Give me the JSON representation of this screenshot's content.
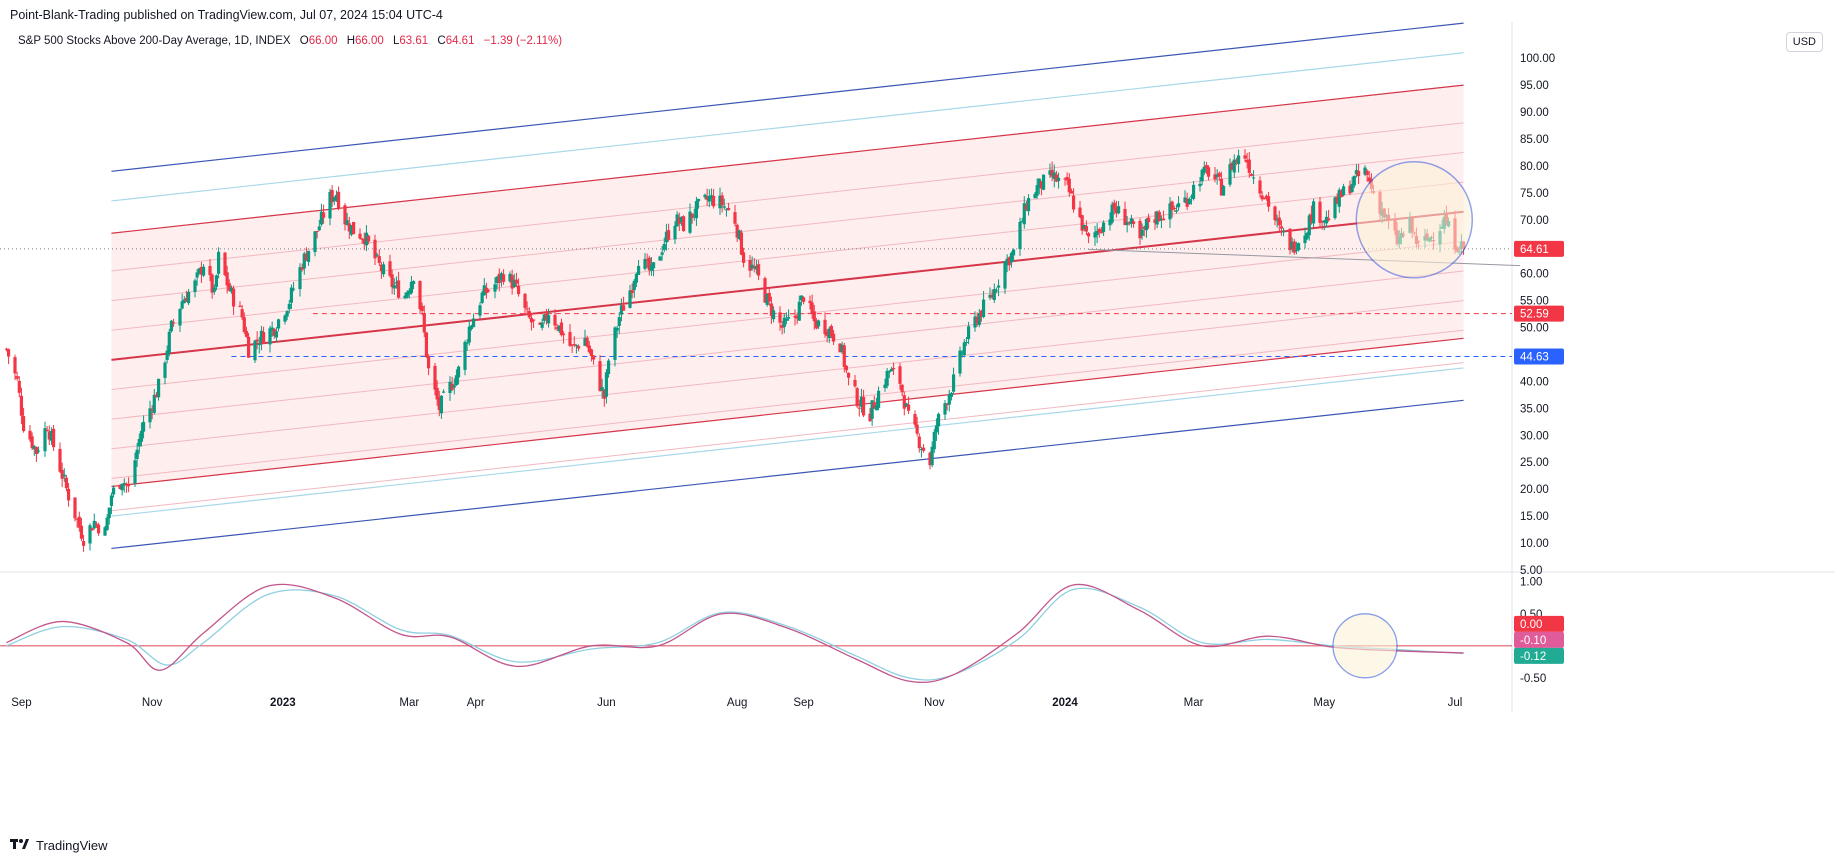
{
  "publisher": {
    "text": "Point-Blank-Trading published on TradingView.com, Jul 07, 2024 15:04 UTC-4"
  },
  "legend": {
    "symbol": "S&P 500 Stocks Above 200-Day Average, 1D, INDEX",
    "o_label": "O",
    "o_value": "66.00",
    "h_label": "H",
    "h_value": "66.00",
    "l_label": "L",
    "l_value": "63.61",
    "c_label": "C",
    "c_value": "64.61",
    "change": "−1.39 (−2.11%)"
  },
  "currency": "USD",
  "footer": {
    "brand": "TradingView",
    "logo": "tradingview-logo-icon"
  },
  "colors": {
    "up": "#089981",
    "down": "#f23645",
    "channel_red": "#d6364a",
    "channel_fill": "#fde8e8",
    "channel_blue": "#3b56b5",
    "channel_lightblue": "#a8d8ea",
    "osc_pink": "#c2558b",
    "osc_blue": "#8fcfe0",
    "label_red": "#f23645",
    "label_blue": "#2962ff",
    "label_pink": "#e05b9a",
    "label_teal": "#22ab94",
    "circle": "#3a5bd9"
  },
  "chart_data": [
    {
      "type": "candlestick",
      "name": "S&P 500 Stocks Above 200-Day Average",
      "x_ticks": [
        "Sep",
        "Nov",
        "2023",
        "Mar",
        "Apr",
        "Jun",
        "Aug",
        "Sep",
        "Nov",
        "2024",
        "Mar",
        "May",
        "Jul"
      ],
      "x_ticks_bold": [
        "2023",
        "2024"
      ],
      "y_ticks": [
        "100.00",
        "95.00",
        "90.00",
        "85.00",
        "80.00",
        "75.00",
        "70.00",
        "65.00",
        "60.00",
        "55.00",
        "50.00",
        "45.00",
        "40.00",
        "35.00",
        "30.00",
        "25.00",
        "20.00",
        "15.00",
        "10.00",
        "5.00"
      ],
      "ylim": [
        5,
        103
      ],
      "close_path": [
        [
          "2022-08-25",
          46
        ],
        [
          "2022-08-30",
          40
        ],
        [
          "2022-09-02",
          32
        ],
        [
          "2022-09-08",
          27
        ],
        [
          "2022-09-13",
          32
        ],
        [
          "2022-09-16",
          28
        ],
        [
          "2022-09-22",
          20
        ],
        [
          "2022-09-28",
          13
        ],
        [
          "2022-09-30",
          11
        ],
        [
          "2022-10-05",
          14
        ],
        [
          "2022-10-10",
          12
        ],
        [
          "2022-10-13",
          19
        ],
        [
          "2022-10-18",
          22
        ],
        [
          "2022-10-21",
          20
        ],
        [
          "2022-10-27",
          31
        ],
        [
          "2022-11-01",
          36
        ],
        [
          "2022-11-04",
          39
        ],
        [
          "2022-11-10",
          50
        ],
        [
          "2022-11-15",
          55
        ],
        [
          "2022-11-21",
          58
        ],
        [
          "2022-11-25",
          62
        ],
        [
          "2022-11-30",
          56
        ],
        [
          "2022-12-02",
          63
        ],
        [
          "2022-12-07",
          57
        ],
        [
          "2022-12-13",
          52
        ],
        [
          "2022-12-16",
          46
        ],
        [
          "2022-12-21",
          48
        ],
        [
          "2022-12-28",
          50
        ],
        [
          "2023-01-04",
          55
        ],
        [
          "2023-01-10",
          62
        ],
        [
          "2023-01-17",
          68
        ],
        [
          "2023-01-23",
          74
        ],
        [
          "2023-01-26",
          75
        ],
        [
          "2023-01-30",
          70
        ],
        [
          "2023-02-03",
          68
        ],
        [
          "2023-02-08",
          67
        ],
        [
          "2023-02-14",
          62
        ],
        [
          "2023-02-21",
          58
        ],
        [
          "2023-02-27",
          56
        ],
        [
          "2023-03-03",
          60
        ],
        [
          "2023-03-07",
          52
        ],
        [
          "2023-03-10",
          42
        ],
        [
          "2023-03-15",
          35
        ],
        [
          "2023-03-20",
          39
        ],
        [
          "2023-03-24",
          42
        ],
        [
          "2023-03-29",
          50
        ],
        [
          "2023-04-04",
          56
        ],
        [
          "2023-04-10",
          58
        ],
        [
          "2023-04-14",
          60
        ],
        [
          "2023-04-19",
          58
        ],
        [
          "2023-04-25",
          52
        ],
        [
          "2023-05-01",
          49
        ],
        [
          "2023-05-05",
          53
        ],
        [
          "2023-05-10",
          50
        ],
        [
          "2023-05-16",
          46
        ],
        [
          "2023-05-22",
          48
        ],
        [
          "2023-05-26",
          43
        ],
        [
          "2023-05-31",
          37
        ],
        [
          "2023-06-02",
          44
        ],
        [
          "2023-06-07",
          52
        ],
        [
          "2023-06-13",
          58
        ],
        [
          "2023-06-16",
          63
        ],
        [
          "2023-06-22",
          60
        ],
        [
          "2023-06-28",
          66
        ],
        [
          "2023-07-03",
          70
        ],
        [
          "2023-07-07",
          69
        ],
        [
          "2023-07-13",
          72
        ],
        [
          "2023-07-19",
          74
        ],
        [
          "2023-07-25",
          73
        ],
        [
          "2023-07-31",
          70
        ],
        [
          "2023-08-04",
          63
        ],
        [
          "2023-08-10",
          60
        ],
        [
          "2023-08-16",
          54
        ],
        [
          "2023-08-22",
          50
        ],
        [
          "2023-08-28",
          52
        ],
        [
          "2023-09-01",
          56
        ],
        [
          "2023-09-06",
          51
        ],
        [
          "2023-09-12",
          50
        ],
        [
          "2023-09-18",
          47
        ],
        [
          "2023-09-22",
          40
        ],
        [
          "2023-09-27",
          36
        ],
        [
          "2023-10-02",
          34
        ],
        [
          "2023-10-06",
          38
        ],
        [
          "2023-10-11",
          42
        ],
        [
          "2023-10-16",
          40
        ],
        [
          "2023-10-20",
          33
        ],
        [
          "2023-10-25",
          29
        ],
        [
          "2023-10-30",
          25
        ],
        [
          "2023-11-02",
          32
        ],
        [
          "2023-11-07",
          37
        ],
        [
          "2023-11-10",
          40
        ],
        [
          "2023-11-15",
          47
        ],
        [
          "2023-11-21",
          52
        ],
        [
          "2023-11-28",
          56
        ],
        [
          "2023-12-04",
          62
        ],
        [
          "2023-12-08",
          64
        ],
        [
          "2023-12-14",
          73
        ],
        [
          "2023-12-19",
          76
        ],
        [
          "2023-12-26",
          78
        ],
        [
          "2024-01-02",
          76
        ],
        [
          "2024-01-08",
          70
        ],
        [
          "2024-01-12",
          66
        ],
        [
          "2024-01-18",
          69
        ],
        [
          "2024-01-24",
          72
        ],
        [
          "2024-01-30",
          70
        ],
        [
          "2024-02-05",
          66
        ],
        [
          "2024-02-09",
          70
        ],
        [
          "2024-02-15",
          71
        ],
        [
          "2024-02-21",
          72
        ],
        [
          "2024-02-27",
          74
        ],
        [
          "2024-03-04",
          78
        ],
        [
          "2024-03-08",
          79
        ],
        [
          "2024-03-14",
          76
        ],
        [
          "2024-03-20",
          81
        ],
        [
          "2024-03-25",
          82
        ],
        [
          "2024-03-29",
          78
        ],
        [
          "2024-04-04",
          74
        ],
        [
          "2024-04-10",
          68
        ],
        [
          "2024-04-16",
          65
        ],
        [
          "2024-04-22",
          68
        ],
        [
          "2024-04-26",
          72
        ],
        [
          "2024-05-02",
          70
        ],
        [
          "2024-05-08",
          74
        ],
        [
          "2024-05-14",
          77
        ],
        [
          "2024-05-20",
          79
        ],
        [
          "2024-05-24",
          75
        ],
        [
          "2024-05-30",
          70
        ],
        [
          "2024-06-04",
          66
        ],
        [
          "2024-06-10",
          69
        ],
        [
          "2024-06-14",
          65
        ],
        [
          "2024-06-20",
          67
        ],
        [
          "2024-06-26",
          70
        ],
        [
          "2024-07-01",
          66
        ],
        [
          "2024-07-05",
          64.61
        ]
      ],
      "last_close": 64.61,
      "last_close_label": "64.61",
      "levels": [
        {
          "value": 52.59,
          "label": "52.59",
          "color": "red",
          "from": "2023-01-15"
        },
        {
          "value": 44.63,
          "label": "44.63",
          "color": "blue",
          "from": "2022-12-08"
        }
      ],
      "regression_channel": {
        "start": "2022-10-13",
        "end": "2024-07-05",
        "mid_start": 44,
        "mid_end": 71.5,
        "inner_offsets": [
          -28,
          -22,
          -16.5,
          -11,
          -5.5,
          5.5,
          11,
          16.5,
          23.5
        ],
        "outer_red_offsets": [
          -23.5,
          23.5
        ],
        "light_blue_offsets": [
          -29,
          29.5
        ],
        "blue_offsets": [
          -35,
          35
        ]
      },
      "highlight": {
        "center_date": "2024-06-12",
        "center_value": 70
      }
    },
    {
      "type": "line",
      "name": "oscillator",
      "y_ticks": [
        "1.00",
        "0.50",
        "0.00",
        "-0.50"
      ],
      "ylim": [
        -0.72,
        1.12
      ],
      "zero_line": 0,
      "labels": [
        {
          "value": "0.00",
          "color": "red"
        },
        {
          "value": "-0.10",
          "color": "pink"
        },
        {
          "value": "-0.12",
          "color": "teal"
        }
      ],
      "series_a": [
        [
          "2022-08-25",
          0.05
        ],
        [
          "2022-09-20",
          0.38
        ],
        [
          "2022-10-20",
          0.05
        ],
        [
          "2022-11-05",
          -0.38
        ],
        [
          "2022-11-25",
          0.2
        ],
        [
          "2022-12-25",
          0.93
        ],
        [
          "2023-01-25",
          0.75
        ],
        [
          "2023-02-25",
          0.18
        ],
        [
          "2023-03-20",
          0.14
        ],
        [
          "2023-04-20",
          -0.32
        ],
        [
          "2023-05-25",
          0.0
        ],
        [
          "2023-06-25",
          0.0
        ],
        [
          "2023-07-25",
          0.5
        ],
        [
          "2023-08-25",
          0.27
        ],
        [
          "2023-09-25",
          -0.2
        ],
        [
          "2023-10-20",
          -0.55
        ],
        [
          "2023-11-10",
          -0.45
        ],
        [
          "2023-12-10",
          0.2
        ],
        [
          "2024-01-05",
          0.95
        ],
        [
          "2024-02-05",
          0.55
        ],
        [
          "2024-03-05",
          0.0
        ],
        [
          "2024-04-05",
          0.15
        ],
        [
          "2024-05-05",
          -0.02
        ],
        [
          "2024-06-05",
          -0.08
        ],
        [
          "2024-07-05",
          -0.11
        ]
      ],
      "series_b": [
        [
          "2022-08-25",
          0.0
        ],
        [
          "2022-09-20",
          0.3
        ],
        [
          "2022-10-20",
          0.1
        ],
        [
          "2022-11-08",
          -0.3
        ],
        [
          "2022-11-25",
          0.05
        ],
        [
          "2022-12-25",
          0.8
        ],
        [
          "2023-01-25",
          0.78
        ],
        [
          "2023-02-25",
          0.25
        ],
        [
          "2023-03-20",
          0.16
        ],
        [
          "2023-04-20",
          -0.25
        ],
        [
          "2023-05-25",
          -0.05
        ],
        [
          "2023-06-25",
          0.05
        ],
        [
          "2023-07-25",
          0.52
        ],
        [
          "2023-08-25",
          0.3
        ],
        [
          "2023-09-25",
          -0.15
        ],
        [
          "2023-10-20",
          -0.5
        ],
        [
          "2023-11-10",
          -0.45
        ],
        [
          "2023-12-10",
          0.1
        ],
        [
          "2024-01-05",
          0.88
        ],
        [
          "2024-02-05",
          0.6
        ],
        [
          "2024-03-05",
          0.05
        ],
        [
          "2024-04-05",
          0.1
        ],
        [
          "2024-05-05",
          0.0
        ],
        [
          "2024-06-05",
          -0.06
        ],
        [
          "2024-07-05",
          -0.12
        ]
      ],
      "highlight": {
        "center_date": "2024-05-20",
        "center_value": 0.0
      }
    }
  ]
}
